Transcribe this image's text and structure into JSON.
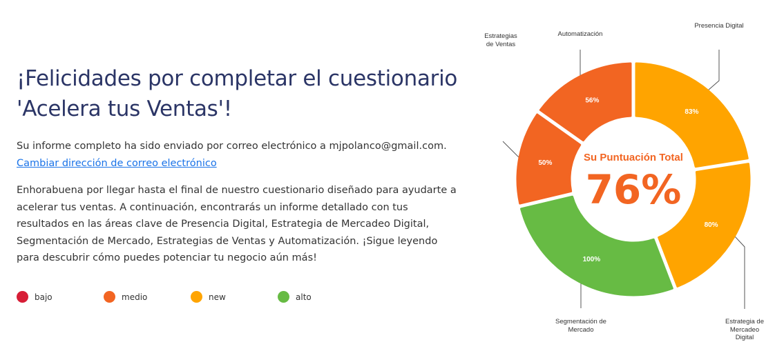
{
  "heading": "¡Felicidades por completar el cuestionario 'Acelera tus Ventas'!",
  "sent_text": "Su informe completo ha sido enviado por correo electrónico a mjpolanco@gmail.com.",
  "change_email_link": "Cambiar dirección de correo electrónico",
  "body_text": "Enhorabuena por llegar hasta el final de nuestro cuestionario diseñado para ayudarte a acelerar tus ventas. A continuación, encontrarás un informe detallado con tus resultados en las áreas clave de Presencia Digital, Estrategia de Mercadeo Digital, Segmentación de Mercado, Estrategias de Ventas y Automatización. ¡Sigue leyendo para descubrir cómo puedes potenciar tu negocio aún más!",
  "legend": [
    {
      "label": "bajo",
      "color": "#D71E36"
    },
    {
      "label": "medio",
      "color": "#F26522"
    },
    {
      "label": "new",
      "color": "#FFA400"
    },
    {
      "label": "alto",
      "color": "#67BB44"
    }
  ],
  "chart_data": {
    "type": "pie",
    "title": "Su Puntuación Total",
    "total": "76%",
    "slices": [
      {
        "label": "Presencia Digital",
        "value": 83,
        "display": "83%",
        "color": "#FFA400"
      },
      {
        "label": "Estrategia de Mercadeo Digital",
        "value": 80,
        "display": "80%",
        "color": "#FFA400"
      },
      {
        "label": "Segmentación de Mercado",
        "value": 100,
        "display": "100%",
        "color": "#67BB44"
      },
      {
        "label": "Estrategias de Ventas",
        "value": 50,
        "display": "50%",
        "color": "#F26522"
      },
      {
        "label": "Automatización",
        "value": 56,
        "display": "56%",
        "color": "#F26522"
      }
    ]
  }
}
